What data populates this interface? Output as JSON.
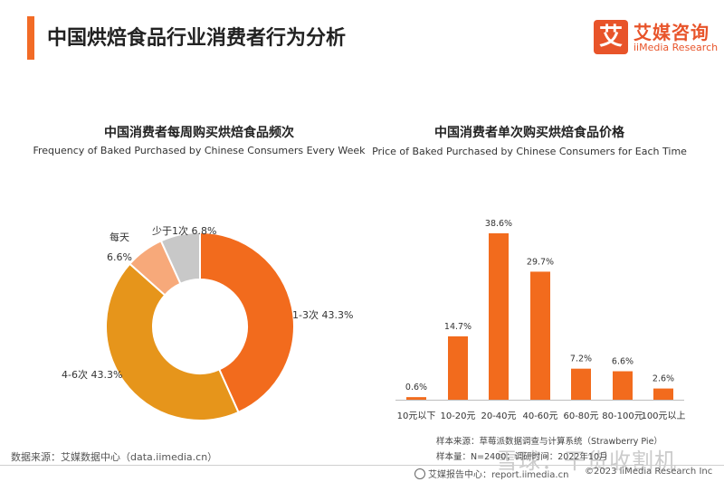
{
  "page": {
    "title": "中国烘焙食品行业消费者行为分析",
    "logo_mark": "艾",
    "logo_cn": "艾媒咨询",
    "logo_en": "iiMedia Research"
  },
  "chart_data": [
    {
      "type": "pie",
      "title": "中国消费者每周购买烘焙食品频次",
      "subtitle": "Frequency of Baked Purchased by Chinese Consumers Every Week",
      "slices": [
        {
          "label": "1-3次",
          "value": 43.3,
          "display": "43.3%",
          "color": "#f26b1d"
        },
        {
          "label": "4-6次",
          "value": 43.3,
          "display": "43.3%",
          "color": "#e6951b"
        },
        {
          "label": "每天",
          "value": 6.6,
          "display": "6.6%",
          "color": "#f7a97a"
        },
        {
          "label": "少于1次",
          "value": 6.8,
          "display": "6.8%",
          "color": "#c8c8c8"
        }
      ]
    },
    {
      "type": "bar",
      "title": "中国消费者单次购买烘焙食品价格",
      "subtitle": "Price of Baked Purchased by Chinese Consumers for Each Time",
      "categories": [
        "10元以下",
        "10-20元",
        "20-40元",
        "40-60元",
        "60-80元",
        "80-100元",
        "100元以上"
      ],
      "values": [
        0.6,
        14.7,
        38.6,
        29.7,
        7.2,
        6.6,
        2.6
      ],
      "value_labels": [
        "0.6%",
        "14.7%",
        "38.6%",
        "29.7%",
        "7.2%",
        "6.6%",
        "2.6%"
      ],
      "ylim": [
        0,
        40
      ],
      "color": "#f26b1d",
      "grid": false
    }
  ],
  "notes": {
    "source_left": "数据来源：艾媒数据中心（data.iimedia.cn）",
    "sample_source": "样本来源：草莓派数据调查与计算系统（Strawberry Pie）",
    "sample_size": "样本量：N=2400；调研时间：2022年10月"
  },
  "footer": {
    "report_center": "艾媒报告中心：report.iimedia.cn",
    "copyright": "©2023 iiMedia Research Inc"
  },
  "watermark": "雪球：干货收割机"
}
